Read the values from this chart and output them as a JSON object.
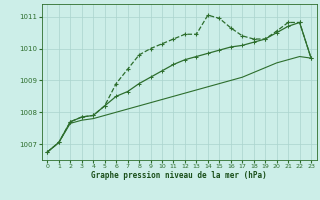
{
  "title": "Graphe pression niveau de la mer (hPa)",
  "bg_color": "#cceee8",
  "grid_color": "#aad4ce",
  "line_color": "#2d6e2d",
  "xlim": [
    -0.5,
    23.5
  ],
  "ylim": [
    1006.5,
    1011.4
  ],
  "xticks": [
    0,
    1,
    2,
    3,
    4,
    5,
    6,
    7,
    8,
    9,
    10,
    11,
    12,
    13,
    14,
    15,
    16,
    17,
    18,
    19,
    20,
    21,
    22,
    23
  ],
  "yticks": [
    1007,
    1008,
    1009,
    1010,
    1011
  ],
  "series1": [
    1006.75,
    1007.05,
    1007.7,
    1007.85,
    1007.9,
    1008.2,
    1008.9,
    1009.35,
    1009.8,
    1010.0,
    1010.15,
    1010.3,
    1010.45,
    1010.45,
    1011.05,
    1010.95,
    1010.65,
    1010.4,
    1010.3,
    1010.3,
    1010.55,
    1010.82,
    1010.82,
    1009.7
  ],
  "series2": [
    1006.75,
    1007.05,
    1007.7,
    1007.85,
    1007.9,
    1008.2,
    1008.5,
    1008.65,
    1008.9,
    1009.1,
    1009.3,
    1009.5,
    1009.65,
    1009.75,
    1009.85,
    1009.95,
    1010.05,
    1010.1,
    1010.2,
    1010.3,
    1010.5,
    1010.7,
    1010.82,
    1009.7
  ],
  "series3": [
    1006.75,
    1007.05,
    1007.65,
    1007.75,
    1007.8,
    1007.9,
    1008.0,
    1008.1,
    1008.2,
    1008.3,
    1008.4,
    1008.5,
    1008.6,
    1008.7,
    1008.8,
    1008.9,
    1009.0,
    1009.1,
    1009.25,
    1009.4,
    1009.55,
    1009.65,
    1009.75,
    1009.7
  ]
}
